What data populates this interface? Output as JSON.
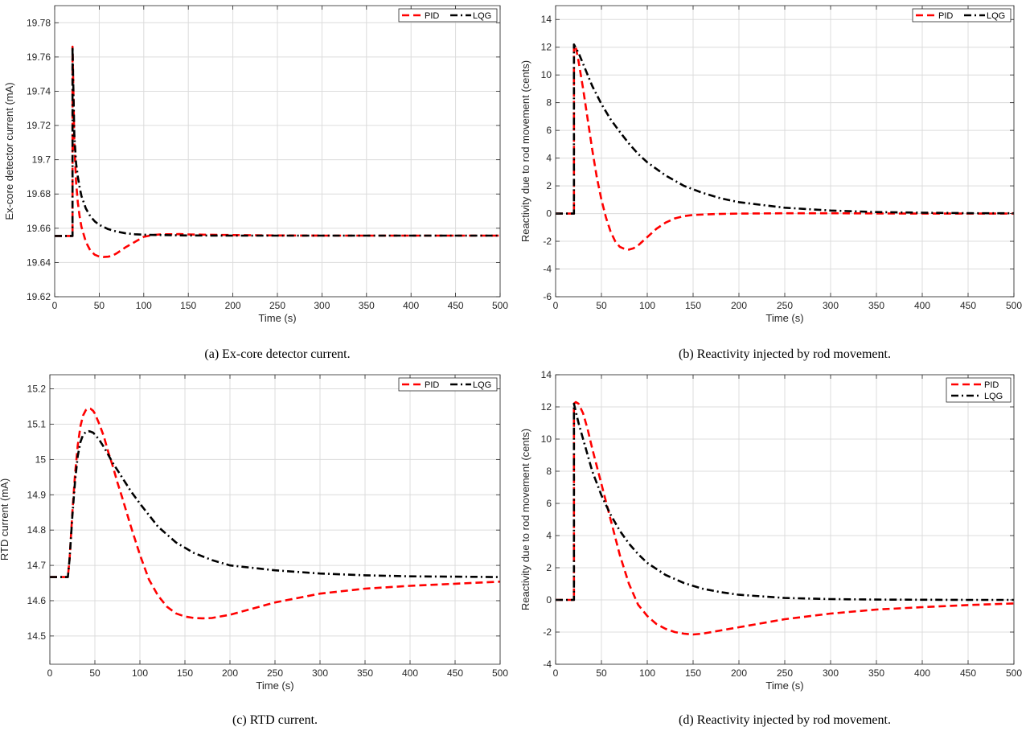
{
  "chart_data": [
    {
      "type": "line",
      "caption": "(a) Ex-core detector current.",
      "xlabel": "Time (s)",
      "ylabel": "Ex-core detector current (mA)",
      "xlim": [
        0,
        500
      ],
      "ylim": [
        19.62,
        19.79
      ],
      "xticks": [
        0,
        50,
        100,
        150,
        200,
        250,
        300,
        350,
        400,
        450,
        500
      ],
      "yticks": [
        19.62,
        19.64,
        19.66,
        19.68,
        19.7,
        19.72,
        19.74,
        19.76,
        19.78
      ],
      "ytick_labels": [
        "19.62",
        "19.64",
        "19.66",
        "19.68",
        "19.7",
        "19.72",
        "19.74",
        "19.76",
        "19.78"
      ],
      "grid": true,
      "legend": {
        "placement": "top-right",
        "orientation": "horizontal"
      },
      "series": [
        {
          "name": "PID",
          "color": "#ff0000",
          "style": "dashed",
          "x": [
            0,
            20,
            20,
            21,
            22,
            24,
            26,
            28,
            30,
            35,
            40,
            45,
            50,
            55,
            60,
            65,
            70,
            80,
            90,
            100,
            110,
            120,
            130,
            140,
            150,
            170,
            200,
            250,
            300,
            400,
            500
          ],
          "y": [
            19.6555,
            19.6555,
            19.766,
            19.74,
            19.71,
            19.687,
            19.675,
            19.667,
            19.661,
            19.652,
            19.647,
            19.6445,
            19.6435,
            19.6432,
            19.6434,
            19.644,
            19.6455,
            19.649,
            19.652,
            19.655,
            19.656,
            19.6565,
            19.6565,
            19.6566,
            19.6564,
            19.6562,
            19.656,
            19.6558,
            19.6557,
            19.6557,
            19.6557
          ]
        },
        {
          "name": "LQG",
          "color": "#000000",
          "style": "dashdot",
          "x": [
            0,
            20,
            20,
            21,
            22,
            24,
            26,
            28,
            30,
            35,
            40,
            45,
            50,
            60,
            70,
            80,
            90,
            100,
            120,
            150,
            200,
            300,
            400,
            500
          ],
          "y": [
            19.6555,
            19.6555,
            19.766,
            19.74,
            19.715,
            19.698,
            19.69,
            19.684,
            19.679,
            19.6715,
            19.667,
            19.664,
            19.662,
            19.6595,
            19.658,
            19.657,
            19.6565,
            19.6562,
            19.656,
            19.6558,
            19.6557,
            19.6557,
            19.6557,
            19.6557
          ]
        }
      ]
    },
    {
      "type": "line",
      "caption": "(b) Reactivity injected by rod movement.",
      "xlabel": "Time (s)",
      "ylabel": "Reactivity due to rod movement (cents)",
      "xlim": [
        0,
        500
      ],
      "ylim": [
        -6,
        15
      ],
      "xticks": [
        0,
        50,
        100,
        150,
        200,
        250,
        300,
        350,
        400,
        450,
        500
      ],
      "yticks": [
        -6,
        -4,
        -2,
        0,
        2,
        4,
        6,
        8,
        10,
        12,
        14
      ],
      "ytick_labels": [
        "-6",
        "-4",
        "-2",
        "0",
        "2",
        "4",
        "6",
        "8",
        "10",
        "12",
        "14"
      ],
      "grid": true,
      "legend": {
        "placement": "top-right",
        "orientation": "horizontal"
      },
      "series": [
        {
          "name": "PID",
          "color": "#ff0000",
          "style": "dashed",
          "x": [
            0,
            20,
            20,
            22,
            25,
            30,
            35,
            40,
            45,
            50,
            55,
            60,
            65,
            70,
            75,
            80,
            85,
            90,
            95,
            100,
            110,
            120,
            130,
            140,
            150,
            175,
            200,
            250,
            300,
            350,
            400,
            450,
            500
          ],
          "y": [
            0,
            0,
            12.2,
            12.0,
            11.0,
            9.0,
            6.8,
            4.6,
            2.6,
            1.0,
            -0.3,
            -1.3,
            -2.0,
            -2.4,
            -2.55,
            -2.6,
            -2.5,
            -2.3,
            -2.0,
            -1.7,
            -1.1,
            -0.65,
            -0.35,
            -0.18,
            -0.1,
            -0.03,
            0.0,
            0.02,
            0.02,
            0.01,
            0.0,
            0.0,
            0.0
          ]
        },
        {
          "name": "LQG",
          "color": "#000000",
          "style": "dashdot",
          "x": [
            0,
            20,
            20,
            25,
            30,
            40,
            50,
            60,
            70,
            80,
            90,
            100,
            120,
            140,
            160,
            180,
            200,
            250,
            300,
            350,
            400,
            450,
            500
          ],
          "y": [
            0,
            0,
            12.2,
            11.6,
            10.8,
            9.2,
            7.9,
            6.8,
            5.9,
            5.05,
            4.3,
            3.7,
            2.75,
            2.0,
            1.5,
            1.1,
            0.82,
            0.42,
            0.22,
            0.11,
            0.06,
            0.03,
            0.02
          ]
        }
      ]
    },
    {
      "type": "line",
      "caption": "(c) RTD current.",
      "xlabel": "Time (s)",
      "ylabel": "RTD current (mA)",
      "xlim": [
        0,
        500
      ],
      "ylim": [
        14.42,
        15.24
      ],
      "xticks": [
        0,
        50,
        100,
        150,
        200,
        250,
        300,
        350,
        400,
        450,
        500
      ],
      "yticks": [
        14.5,
        14.6,
        14.7,
        14.8,
        14.9,
        15.0,
        15.1,
        15.2
      ],
      "ytick_labels": [
        "14.5",
        "14.6",
        "14.7",
        "14.8",
        "14.9",
        "15",
        "15.1",
        "15.2"
      ],
      "grid": true,
      "legend": {
        "placement": "top-right",
        "orientation": "horizontal"
      },
      "series": [
        {
          "name": "PID",
          "color": "#ff0000",
          "style": "dashed",
          "x": [
            0,
            20,
            22,
            25,
            28,
            31,
            34,
            37,
            40,
            43,
            45,
            48,
            50,
            55,
            60,
            65,
            70,
            75,
            80,
            90,
            100,
            110,
            120,
            130,
            140,
            150,
            160,
            170,
            180,
            200,
            220,
            250,
            300,
            350,
            400,
            450,
            500
          ],
          "y": [
            14.667,
            14.667,
            14.72,
            14.85,
            14.96,
            15.04,
            15.095,
            15.125,
            15.14,
            15.145,
            15.144,
            15.138,
            15.13,
            15.1,
            15.065,
            15.02,
            14.98,
            14.935,
            14.895,
            14.81,
            14.73,
            14.66,
            14.615,
            14.583,
            14.564,
            14.555,
            14.551,
            14.55,
            14.551,
            14.56,
            14.574,
            14.595,
            14.62,
            14.634,
            14.642,
            14.648,
            14.654
          ]
        },
        {
          "name": "LQG",
          "color": "#000000",
          "style": "dashdot",
          "x": [
            0,
            20,
            22,
            25,
            28,
            31,
            34,
            37,
            40,
            43,
            45,
            48,
            50,
            55,
            60,
            70,
            80,
            90,
            100,
            120,
            140,
            160,
            180,
            200,
            250,
            300,
            350,
            400,
            450,
            500
          ],
          "y": [
            14.667,
            14.667,
            14.72,
            14.84,
            14.94,
            15.01,
            15.05,
            15.07,
            15.078,
            15.08,
            15.079,
            15.076,
            15.071,
            15.055,
            15.035,
            14.99,
            14.95,
            14.91,
            14.875,
            14.81,
            14.765,
            14.735,
            14.715,
            14.7,
            14.686,
            14.677,
            14.672,
            14.669,
            14.668,
            14.667
          ]
        }
      ]
    },
    {
      "type": "line",
      "caption": "(d) Reactivity injected by rod movement.",
      "xlabel": "Time (s)",
      "ylabel": "Reactivity due to rod movement (cents)",
      "xlim": [
        0,
        500
      ],
      "ylim": [
        -4,
        14
      ],
      "xticks": [
        0,
        50,
        100,
        150,
        200,
        250,
        300,
        350,
        400,
        450,
        500
      ],
      "yticks": [
        -4,
        -2,
        0,
        2,
        4,
        6,
        8,
        10,
        12,
        14
      ],
      "ytick_labels": [
        "-4",
        "-2",
        "0",
        "2",
        "4",
        "6",
        "8",
        "10",
        "12",
        "14"
      ],
      "grid": true,
      "legend": {
        "placement": "top-right",
        "orientation": "vertical"
      },
      "series": [
        {
          "name": "PID",
          "color": "#ff0000",
          "style": "dashed",
          "x": [
            0,
            20,
            20,
            22,
            25,
            30,
            35,
            40,
            50,
            60,
            70,
            80,
            90,
            100,
            110,
            120,
            130,
            140,
            150,
            160,
            170,
            180,
            200,
            250,
            300,
            350,
            400,
            450,
            500
          ],
          "y": [
            0,
            0,
            12.2,
            12.3,
            12.2,
            11.6,
            10.6,
            9.4,
            7.2,
            5.0,
            2.8,
            1.0,
            -0.3,
            -1.0,
            -1.5,
            -1.8,
            -2.0,
            -2.1,
            -2.15,
            -2.1,
            -2.0,
            -1.9,
            -1.7,
            -1.2,
            -0.85,
            -0.6,
            -0.45,
            -0.32,
            -0.22
          ]
        },
        {
          "name": "LQG",
          "color": "#000000",
          "style": "dashdot",
          "x": [
            0,
            20,
            20,
            25,
            30,
            40,
            50,
            60,
            70,
            80,
            90,
            100,
            120,
            140,
            160,
            180,
            200,
            250,
            300,
            350,
            400,
            450,
            500
          ],
          "y": [
            0,
            0,
            12.2,
            11.0,
            10.0,
            8.0,
            6.5,
            5.3,
            4.3,
            3.5,
            2.85,
            2.3,
            1.55,
            1.05,
            0.7,
            0.48,
            0.32,
            0.12,
            0.05,
            0.02,
            0.01,
            0.0,
            0.0
          ]
        }
      ]
    }
  ]
}
